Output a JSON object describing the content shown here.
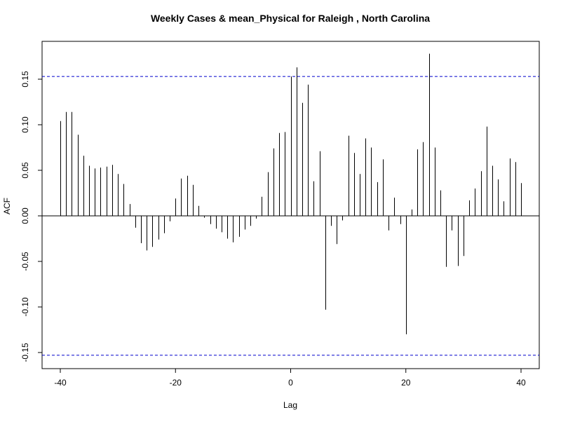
{
  "chart_data": {
    "type": "bar",
    "title": "Weekly Cases & mean_Physical for Raleigh , North Carolina",
    "xlabel": "Lag",
    "ylabel": "ACF",
    "xlim": [
      -40,
      40
    ],
    "ylim": [
      -0.165,
      0.19
    ],
    "x_ticks": [
      -40,
      -20,
      0,
      20,
      40
    ],
    "y_ticks": [
      -0.15,
      -0.1,
      -0.05,
      0.0,
      0.05,
      0.1,
      0.15
    ],
    "y_tick_labels": [
      "-0.15",
      "-0.10",
      "-0.05",
      "0.00",
      "0.05",
      "0.10",
      "0.15"
    ],
    "confidence_limit": 0.153,
    "confidence_line_color": "#0000cc",
    "bar_color": "#000000",
    "grid": false,
    "lags": [
      -40,
      -39,
      -38,
      -37,
      -36,
      -35,
      -34,
      -33,
      -32,
      -31,
      -30,
      -29,
      -28,
      -27,
      -26,
      -25,
      -24,
      -23,
      -22,
      -21,
      -20,
      -19,
      -18,
      -17,
      -16,
      -15,
      -14,
      -13,
      -12,
      -11,
      -10,
      -9,
      -8,
      -7,
      -6,
      -5,
      -4,
      -3,
      -2,
      -1,
      0,
      1,
      2,
      3,
      4,
      5,
      6,
      7,
      8,
      9,
      10,
      11,
      12,
      13,
      14,
      15,
      16,
      17,
      18,
      19,
      20,
      21,
      22,
      23,
      24,
      25,
      26,
      27,
      28,
      29,
      30,
      31,
      32,
      33,
      34,
      35,
      36,
      37,
      38,
      39,
      40
    ],
    "values": [
      0.104,
      0.114,
      0.114,
      0.089,
      0.066,
      0.055,
      0.052,
      0.053,
      0.054,
      0.056,
      0.046,
      0.035,
      0.013,
      -0.013,
      -0.03,
      -0.038,
      -0.034,
      -0.026,
      -0.019,
      -0.006,
      0.019,
      0.041,
      0.044,
      0.034,
      0.011,
      -0.002,
      -0.009,
      -0.014,
      -0.018,
      -0.025,
      -0.029,
      -0.023,
      -0.015,
      -0.011,
      -0.003,
      0.021,
      0.048,
      0.074,
      0.091,
      0.092,
      0.153,
      0.163,
      0.124,
      0.144,
      0.038,
      0.071,
      -0.103,
      -0.011,
      -0.031,
      -0.005,
      0.088,
      0.069,
      0.046,
      0.085,
      0.075,
      0.037,
      0.062,
      -0.016,
      0.02,
      -0.009,
      -0.13,
      0.007,
      0.073,
      0.081,
      0.178,
      0.075,
      0.028,
      -0.056,
      -0.016,
      -0.055,
      -0.044,
      0.017,
      0.03,
      0.049,
      0.098,
      0.055,
      0.04,
      0.016,
      0.063,
      0.059,
      0.036
    ]
  }
}
